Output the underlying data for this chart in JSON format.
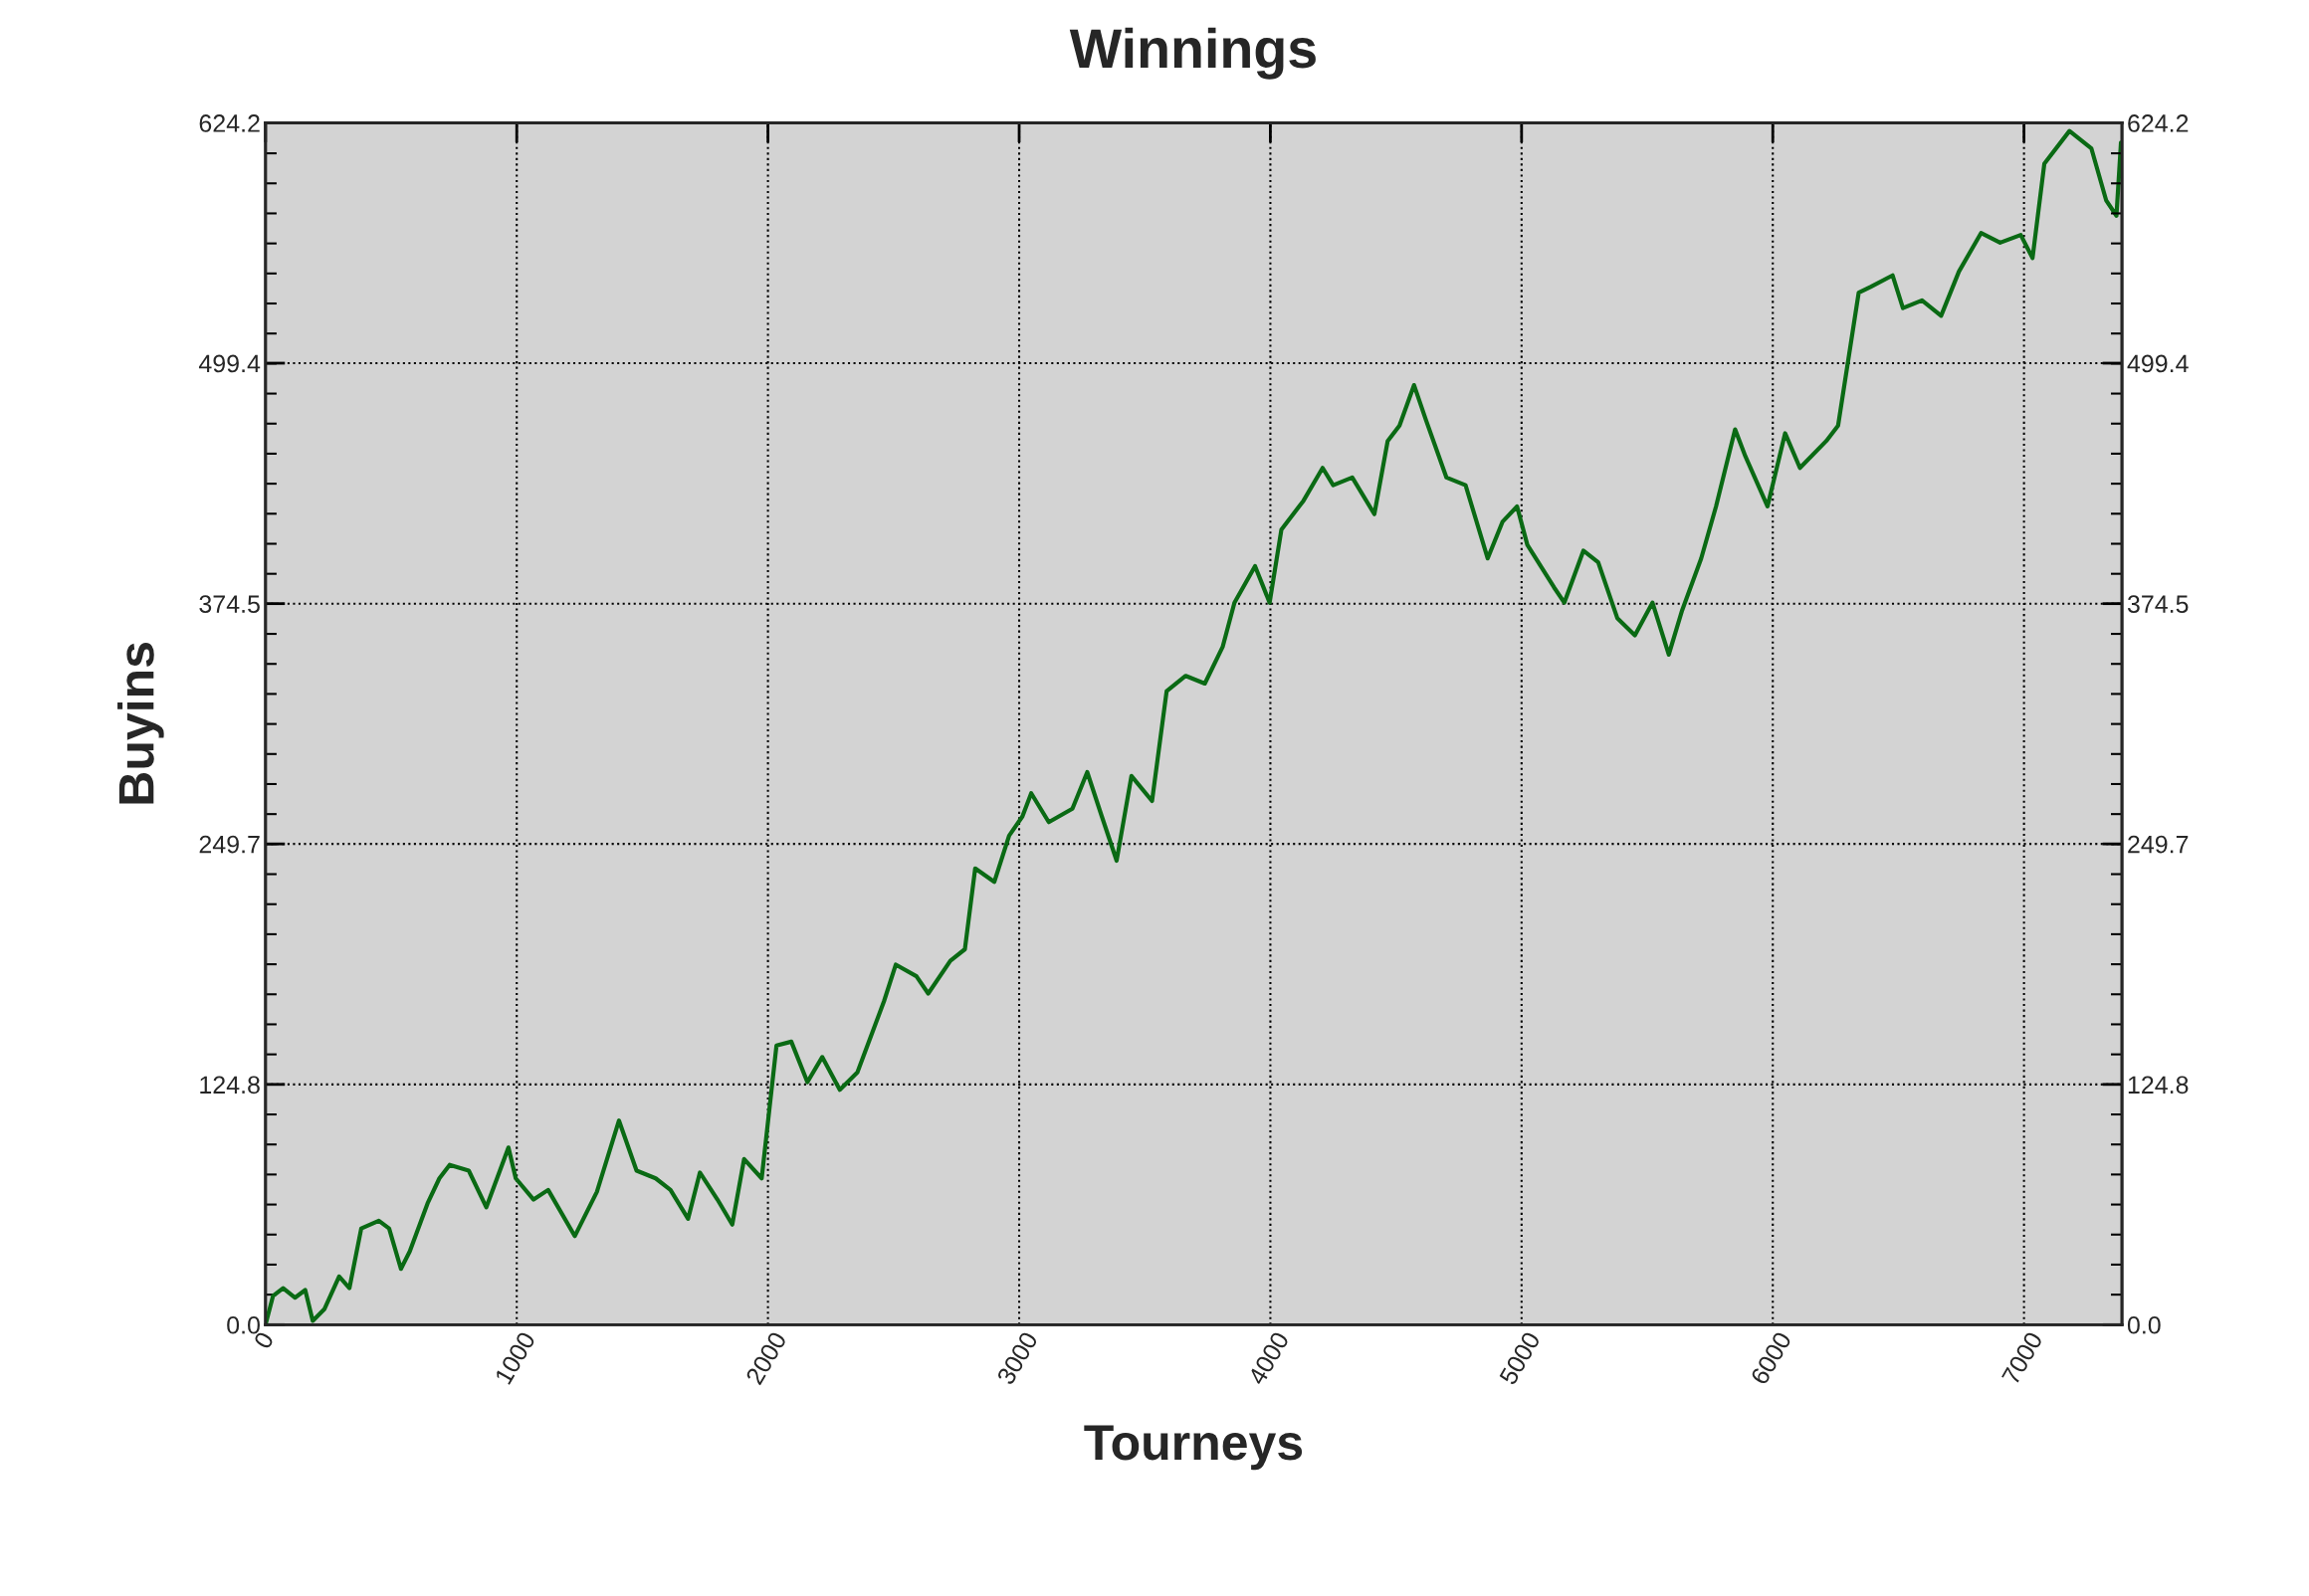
{
  "chart_data": {
    "type": "line",
    "title": "Winnings",
    "xlabel": "Tourneys",
    "ylabel": "Buyins",
    "xlim": [
      0,
      7390
    ],
    "xticks": [
      0,
      1000,
      2000,
      3000,
      4000,
      5000,
      6000,
      7000
    ],
    "ylim": [
      0,
      624.2
    ],
    "yticks": [
      {
        "value": 0,
        "label": "0.0"
      },
      124.8,
      249.7,
      374.5,
      499.4,
      624.2
    ],
    "y2lim": [
      0,
      624.2
    ],
    "y2ticks": [
      {
        "value": 0,
        "label": "0.0"
      },
      124.8,
      249.7,
      374.5,
      499.4,
      624.2
    ],
    "grid": true,
    "legend": false,
    "marker": "none",
    "line_style": "solid",
    "series": [
      {
        "color": "#0a6a14",
        "x": [
          0,
          30,
          70,
          117,
          158,
          188,
          234,
          293,
          334,
          381,
          451,
          492,
          539,
          574,
          645,
          692,
          733,
          809,
          879,
          967,
          996,
          1067,
          1125,
          1231,
          1319,
          1407,
          1477,
          1553,
          1612,
          1682,
          1729,
          1799,
          1858,
          1905,
          1975,
          2034,
          2093,
          2157,
          2216,
          2286,
          2356,
          2462,
          2509,
          2591,
          2638,
          2726,
          2784,
          2825,
          2901,
          2960,
          3013,
          3048,
          3118,
          3212,
          3271,
          3329,
          3388,
          3447,
          3529,
          3587,
          3663,
          3739,
          3810,
          3857,
          3939,
          3997,
          4044,
          4132,
          4208,
          4250,
          4326,
          4414,
          4467,
          4514,
          4572,
          4619,
          4701,
          4777,
          4865,
          4924,
          4982,
          5023,
          5129,
          5170,
          5246,
          5305,
          5381,
          5451,
          5521,
          5586,
          5639,
          5715,
          5774,
          5850,
          5891,
          5979,
          6049,
          6108,
          6213,
          6260,
          6342,
          6389,
          6477,
          6518,
          6594,
          6670,
          6741,
          6829,
          6905,
          6987,
          7034,
          7081,
          7181,
          7268,
          7327,
          7368,
          7386
        ],
        "values": [
          0,
          15,
          19,
          14,
          18,
          2,
          8,
          25,
          19,
          50,
          54,
          50,
          29,
          38,
          63,
          76,
          83,
          80,
          61,
          92,
          76,
          65,
          70,
          46,
          69,
          106,
          80,
          76,
          70,
          55,
          79,
          65,
          52,
          86,
          76,
          145,
          147,
          126,
          139,
          122,
          131,
          168,
          187,
          181,
          172,
          189,
          195,
          237,
          230,
          254,
          264,
          276,
          261,
          268,
          287,
          264,
          241,
          285,
          272,
          329,
          337,
          333,
          352,
          375,
          394,
          375,
          413,
          428,
          445,
          436,
          440,
          421,
          459,
          467,
          488,
          470,
          440,
          436,
          398,
          417,
          425,
          405,
          383,
          375,
          402,
          396,
          367,
          358,
          375,
          348,
          371,
          398,
          425,
          465,
          451,
          425,
          463,
          445,
          459,
          467,
          536,
          539,
          545,
          528,
          532,
          524,
          547,
          567,
          562,
          566,
          554,
          603,
          620,
          611,
          584,
          576,
          614
        ]
      }
    ]
  }
}
